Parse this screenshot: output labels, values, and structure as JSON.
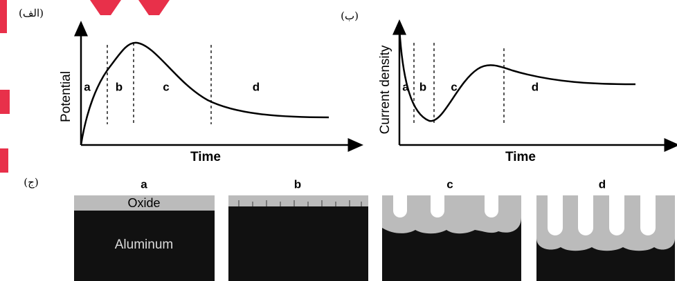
{
  "panels": [
    {
      "label": "(الف)",
      "y_axis": "Potential",
      "x_axis": "Time",
      "phases": [
        "a",
        "b",
        "c",
        "d"
      ]
    },
    {
      "label": "(ب)",
      "y_axis": "Current density",
      "x_axis": "Time",
      "phases": [
        "a",
        "b",
        "c",
        "d"
      ]
    }
  ],
  "stages": {
    "label": "(ج)",
    "titles": [
      "a",
      "b",
      "c",
      "d"
    ],
    "oxide": "Oxide",
    "aluminum": "Aluminum"
  }
}
